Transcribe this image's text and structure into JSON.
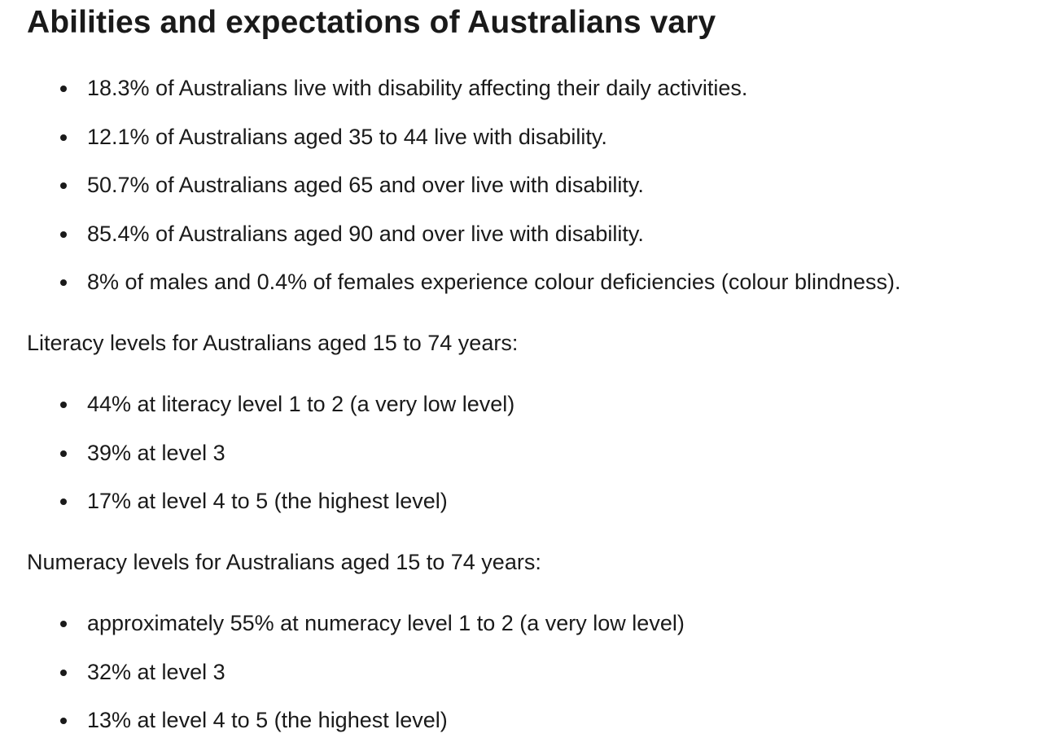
{
  "heading": "Abilities and expectations of Australians vary",
  "disability": {
    "items": [
      "18.3% of Australians live with disability affecting their daily activities.",
      "12.1% of Australians aged 35 to 44 live with disability.",
      "50.7% of Australians aged 65 and over live with disability.",
      "85.4% of Australians aged 90 and over live with disability.",
      "8% of males and 0.4% of females experience colour deficiencies (colour blindness)."
    ]
  },
  "literacy": {
    "intro": "Literacy levels for Australians aged 15 to 74 years:",
    "items": [
      "44% at literacy level 1 to 2 (a very low level)",
      "39% at level 3",
      "17% at level 4 to 5 (the highest level)"
    ]
  },
  "numeracy": {
    "intro": "Numeracy levels for Australians aged 15 to 74 years:",
    "items": [
      "approximately 55% at numeracy level 1 to 2 (a very low level)",
      "32% at level 3",
      "13% at level 4 to 5 (the highest level)"
    ]
  }
}
